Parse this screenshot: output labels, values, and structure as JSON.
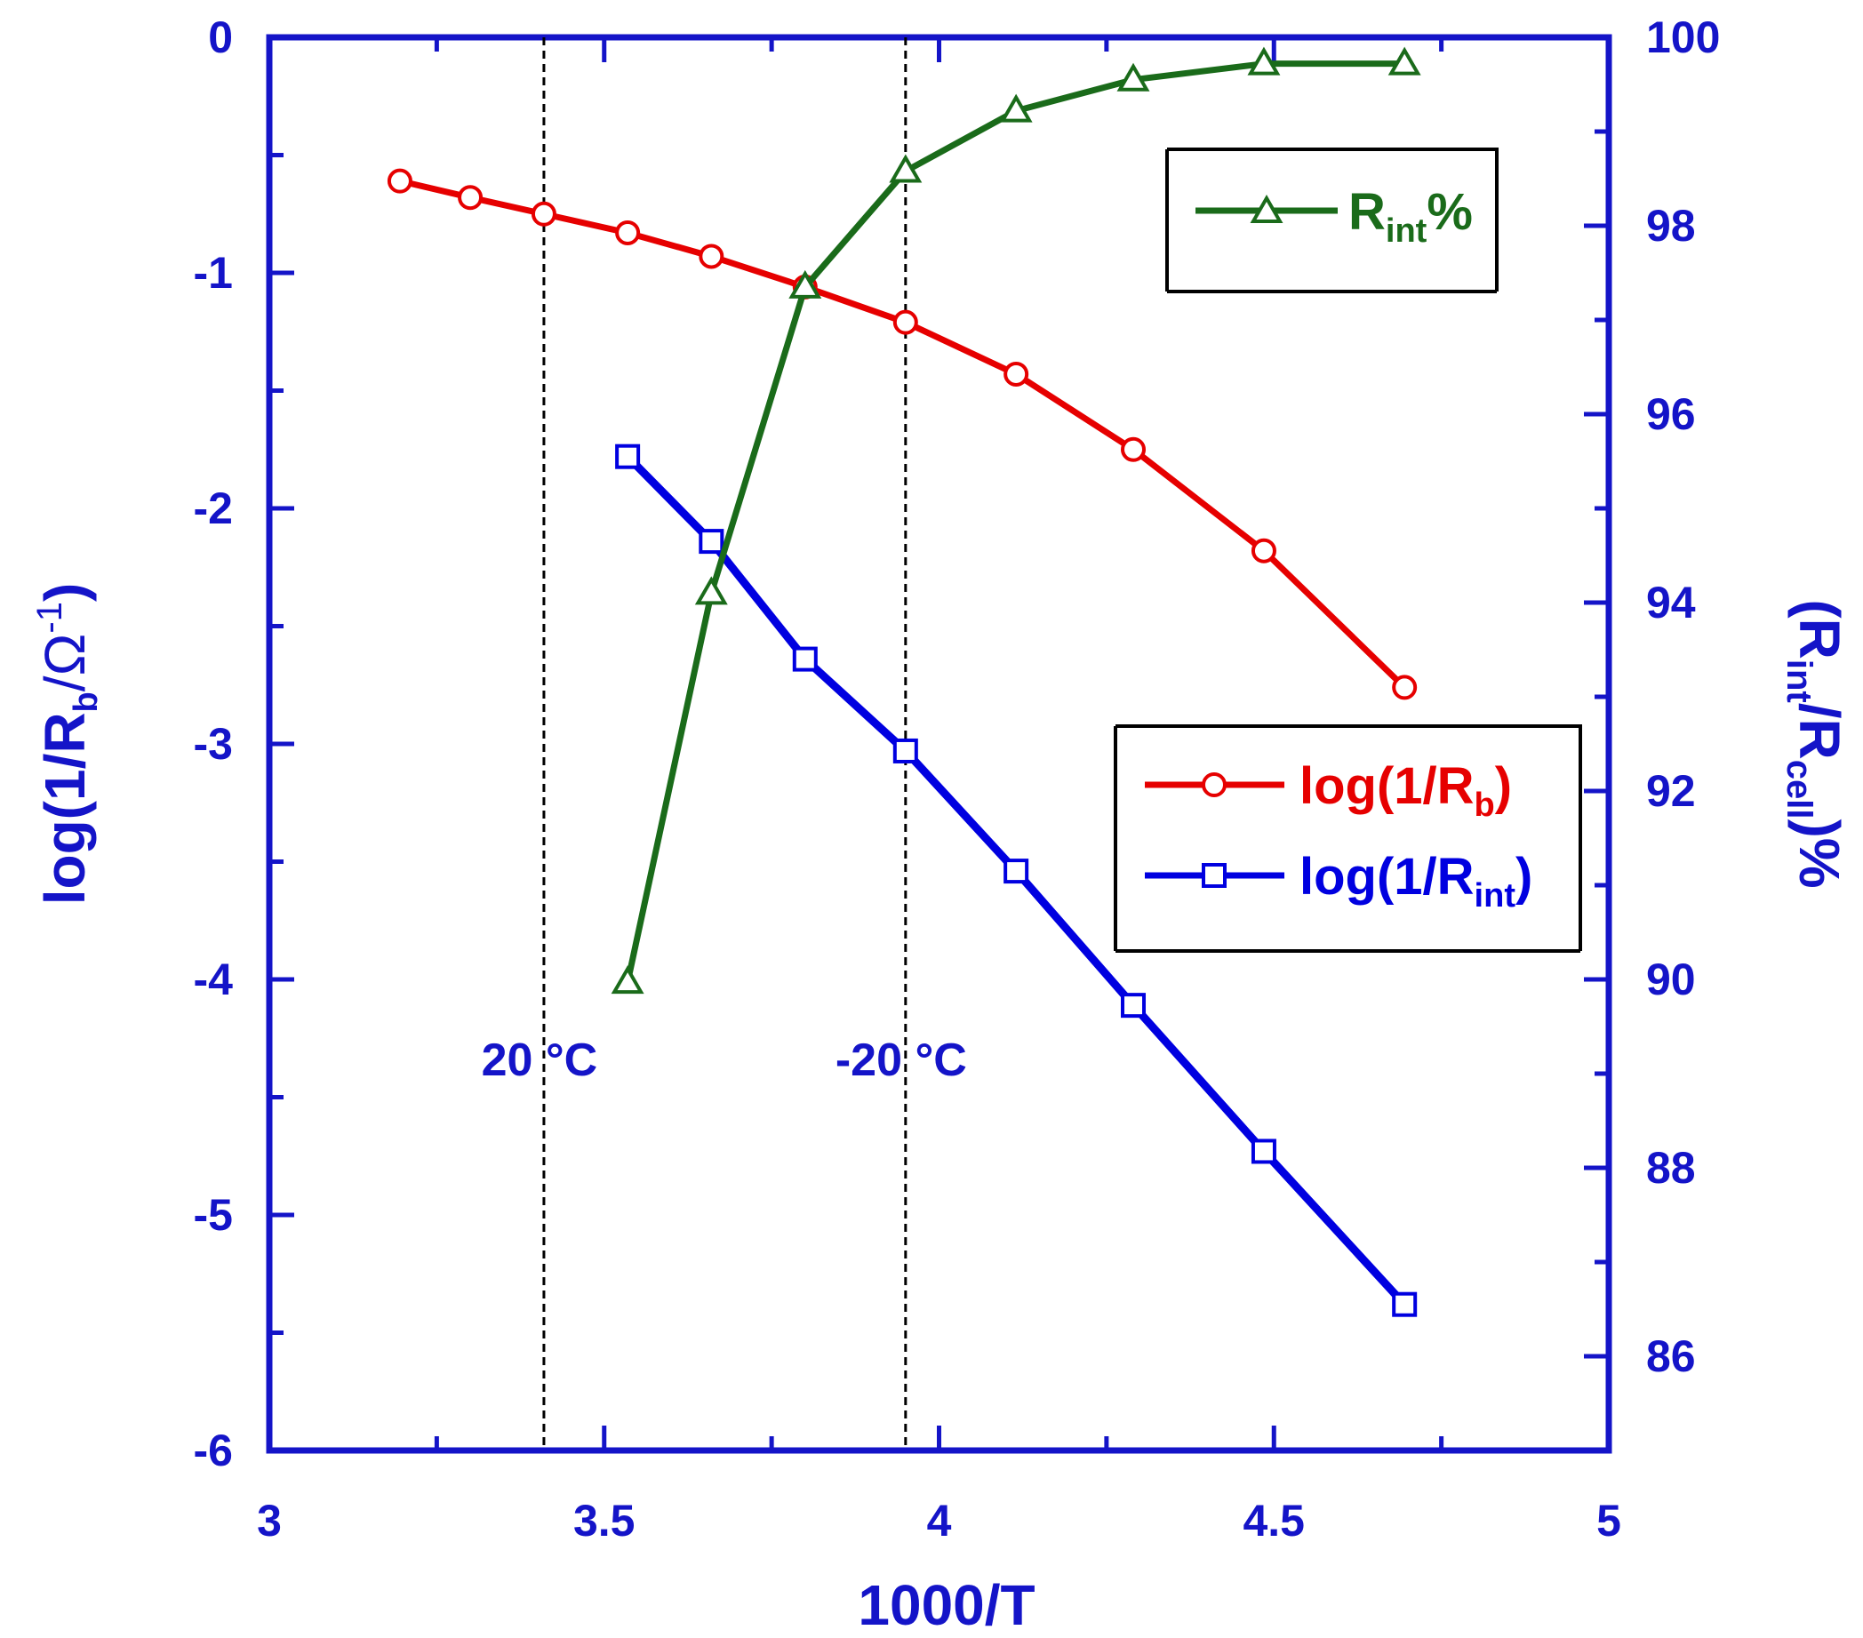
{
  "chart_data": {
    "type": "line",
    "x_axis": {
      "label": "1000/T",
      "range": [
        3,
        5
      ],
      "ticks": [
        "3",
        "3.5",
        "4",
        "4.5",
        "5"
      ],
      "tick_values": [
        3,
        3.5,
        4,
        4.5,
        5
      ],
      "minor_step": 0.25
    },
    "y_left": {
      "label_main": "log(1/R",
      "label_sub": "b",
      "label_end": "/Ω",
      "label_sup": "-1",
      "label_close": ")",
      "range": [
        -6,
        0
      ],
      "ticks": [
        "0",
        "-1",
        "-2",
        "-3",
        "-4",
        "-5",
        "-6"
      ],
      "tick_values": [
        0,
        -1,
        -2,
        -3,
        -4,
        -5,
        -6
      ],
      "minor_step": 0.5
    },
    "y_right": {
      "label_open": "(R",
      "label_sub1": "int",
      "label_mid": "/R",
      "label_sub2": "cell",
      "label_end": ")%",
      "range": [
        85,
        100
      ],
      "ticks": [
        "100",
        "98",
        "96",
        "94",
        "92",
        "90",
        "88",
        "86"
      ],
      "tick_values": [
        100,
        98,
        96,
        94,
        92,
        90,
        88,
        86
      ],
      "minor_step": 1
    },
    "series": [
      {
        "name": "log(1/Rb)",
        "legend_main": "log(1/R",
        "legend_sub": "b",
        "legend_end": ")",
        "axis": "left",
        "color": "#e60000",
        "marker": "circle",
        "x": [
          3.195,
          3.3,
          3.41,
          3.535,
          3.66,
          3.8,
          3.95,
          4.115,
          4.29,
          4.485,
          4.695
        ],
        "y": [
          -0.61,
          -0.68,
          -0.75,
          -0.83,
          -0.93,
          -1.06,
          -1.21,
          -1.43,
          -1.75,
          -2.18,
          -2.76
        ]
      },
      {
        "name": "log(1/Rint)",
        "legend_main": "log(1/R",
        "legend_sub": "int",
        "legend_end": ")",
        "axis": "left",
        "color": "#0000e0",
        "marker": "square",
        "x": [
          3.535,
          3.66,
          3.8,
          3.95,
          4.115,
          4.29,
          4.485,
          4.695
        ],
        "y": [
          -1.78,
          -2.14,
          -2.64,
          -3.03,
          -3.54,
          -4.11,
          -4.73,
          -5.38
        ]
      },
      {
        "name": "Rint%",
        "legend_main": "R",
        "legend_sub": "int",
        "legend_end": "%",
        "axis": "right",
        "color": "#1a6b1a",
        "marker": "triangle",
        "x": [
          3.535,
          3.66,
          3.8,
          3.95,
          4.115,
          4.29,
          4.485,
          4.695
        ],
        "y": [
          89.97,
          94.1,
          97.35,
          98.58,
          99.22,
          99.55,
          99.72,
          99.72
        ]
      }
    ],
    "vlines": [
      {
        "x": 3.41,
        "label_num": "20",
        "label_unit": "°C"
      },
      {
        "x": 3.95,
        "label_num": "-20",
        "label_unit": "°C"
      }
    ],
    "legends": [
      {
        "position": "top-right",
        "entries": [
          "Rint%"
        ]
      },
      {
        "position": "middle-right",
        "entries": [
          "log(1/Rb)",
          "log(1/Rint)"
        ]
      }
    ],
    "grid": false
  }
}
